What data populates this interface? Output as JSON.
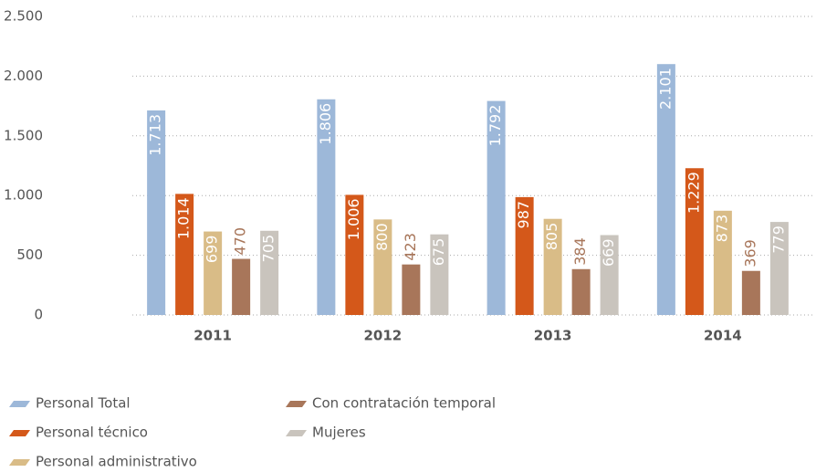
{
  "chart_data": {
    "type": "bar",
    "categories": [
      "2011",
      "2012",
      "2013",
      "2014"
    ],
    "series": [
      {
        "name": "Personal Total",
        "color": "#9db8d9",
        "values": [
          1713,
          1806,
          1792,
          2101
        ],
        "value_labels": [
          "1.713",
          "1.806",
          "1.792",
          "2.101"
        ]
      },
      {
        "name": "Personal técnico",
        "color": "#d4581a",
        "values": [
          1014,
          1006,
          987,
          1229
        ],
        "value_labels": [
          "1.014",
          "1.006",
          "987",
          "1.229"
        ]
      },
      {
        "name": "Personal administrativo",
        "color": "#d9bc87",
        "values": [
          699,
          800,
          805,
          873
        ]
      },
      {
        "name": "Con contratación temporal",
        "color": "#a8765a",
        "values": [
          470,
          423,
          384,
          369
        ]
      },
      {
        "name": "Mujeres",
        "color": "#c9c4bd",
        "values": [
          705,
          675,
          669,
          779
        ]
      }
    ],
    "ylim": [
      0,
      2500
    ],
    "yticks": [
      0,
      500,
      {
        "value": 1000,
        "label": "1.000"
      },
      {
        "value": 1500,
        "label": "1.500"
      },
      {
        "value": 2000,
        "label": "2.000"
      },
      {
        "value": 2500,
        "label": "2.500"
      }
    ],
    "grid": true
  }
}
